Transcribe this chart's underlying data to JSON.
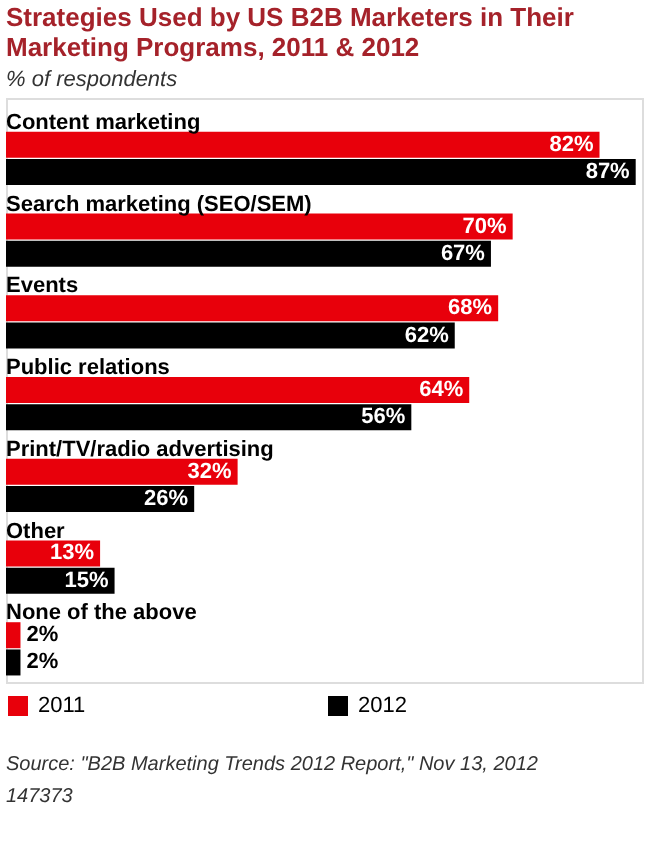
{
  "chart_data": {
    "type": "bar",
    "orientation": "horizontal",
    "title": "Strategies Used by US B2B Marketers in Their Marketing Programs, 2011 & 2012",
    "subtitle": "% of respondents",
    "categories": [
      "Content marketing",
      "Search marketing (SEO/SEM)",
      "Events",
      "Public relations",
      "Print/TV/radio advertising",
      "Other",
      "None of the above"
    ],
    "series": [
      {
        "name": "2011",
        "color": "#e8000b",
        "values": [
          82,
          70,
          68,
          64,
          32,
          13,
          2
        ],
        "value_labels": [
          "82%",
          "70%",
          "68%",
          "64%",
          "32%",
          "13%",
          "2%"
        ]
      },
      {
        "name": "2012",
        "color": "#000000",
        "values": [
          87,
          67,
          62,
          56,
          26,
          15,
          2
        ],
        "value_labels": [
          "87%",
          "67%",
          "62%",
          "56%",
          "26%",
          "15%",
          "2%"
        ]
      }
    ],
    "legend": "bottom",
    "annotations": [
      "Source: \"B2B Marketing Trends 2012 Report,\" Nov 13, 2012",
      "147373"
    ]
  }
}
